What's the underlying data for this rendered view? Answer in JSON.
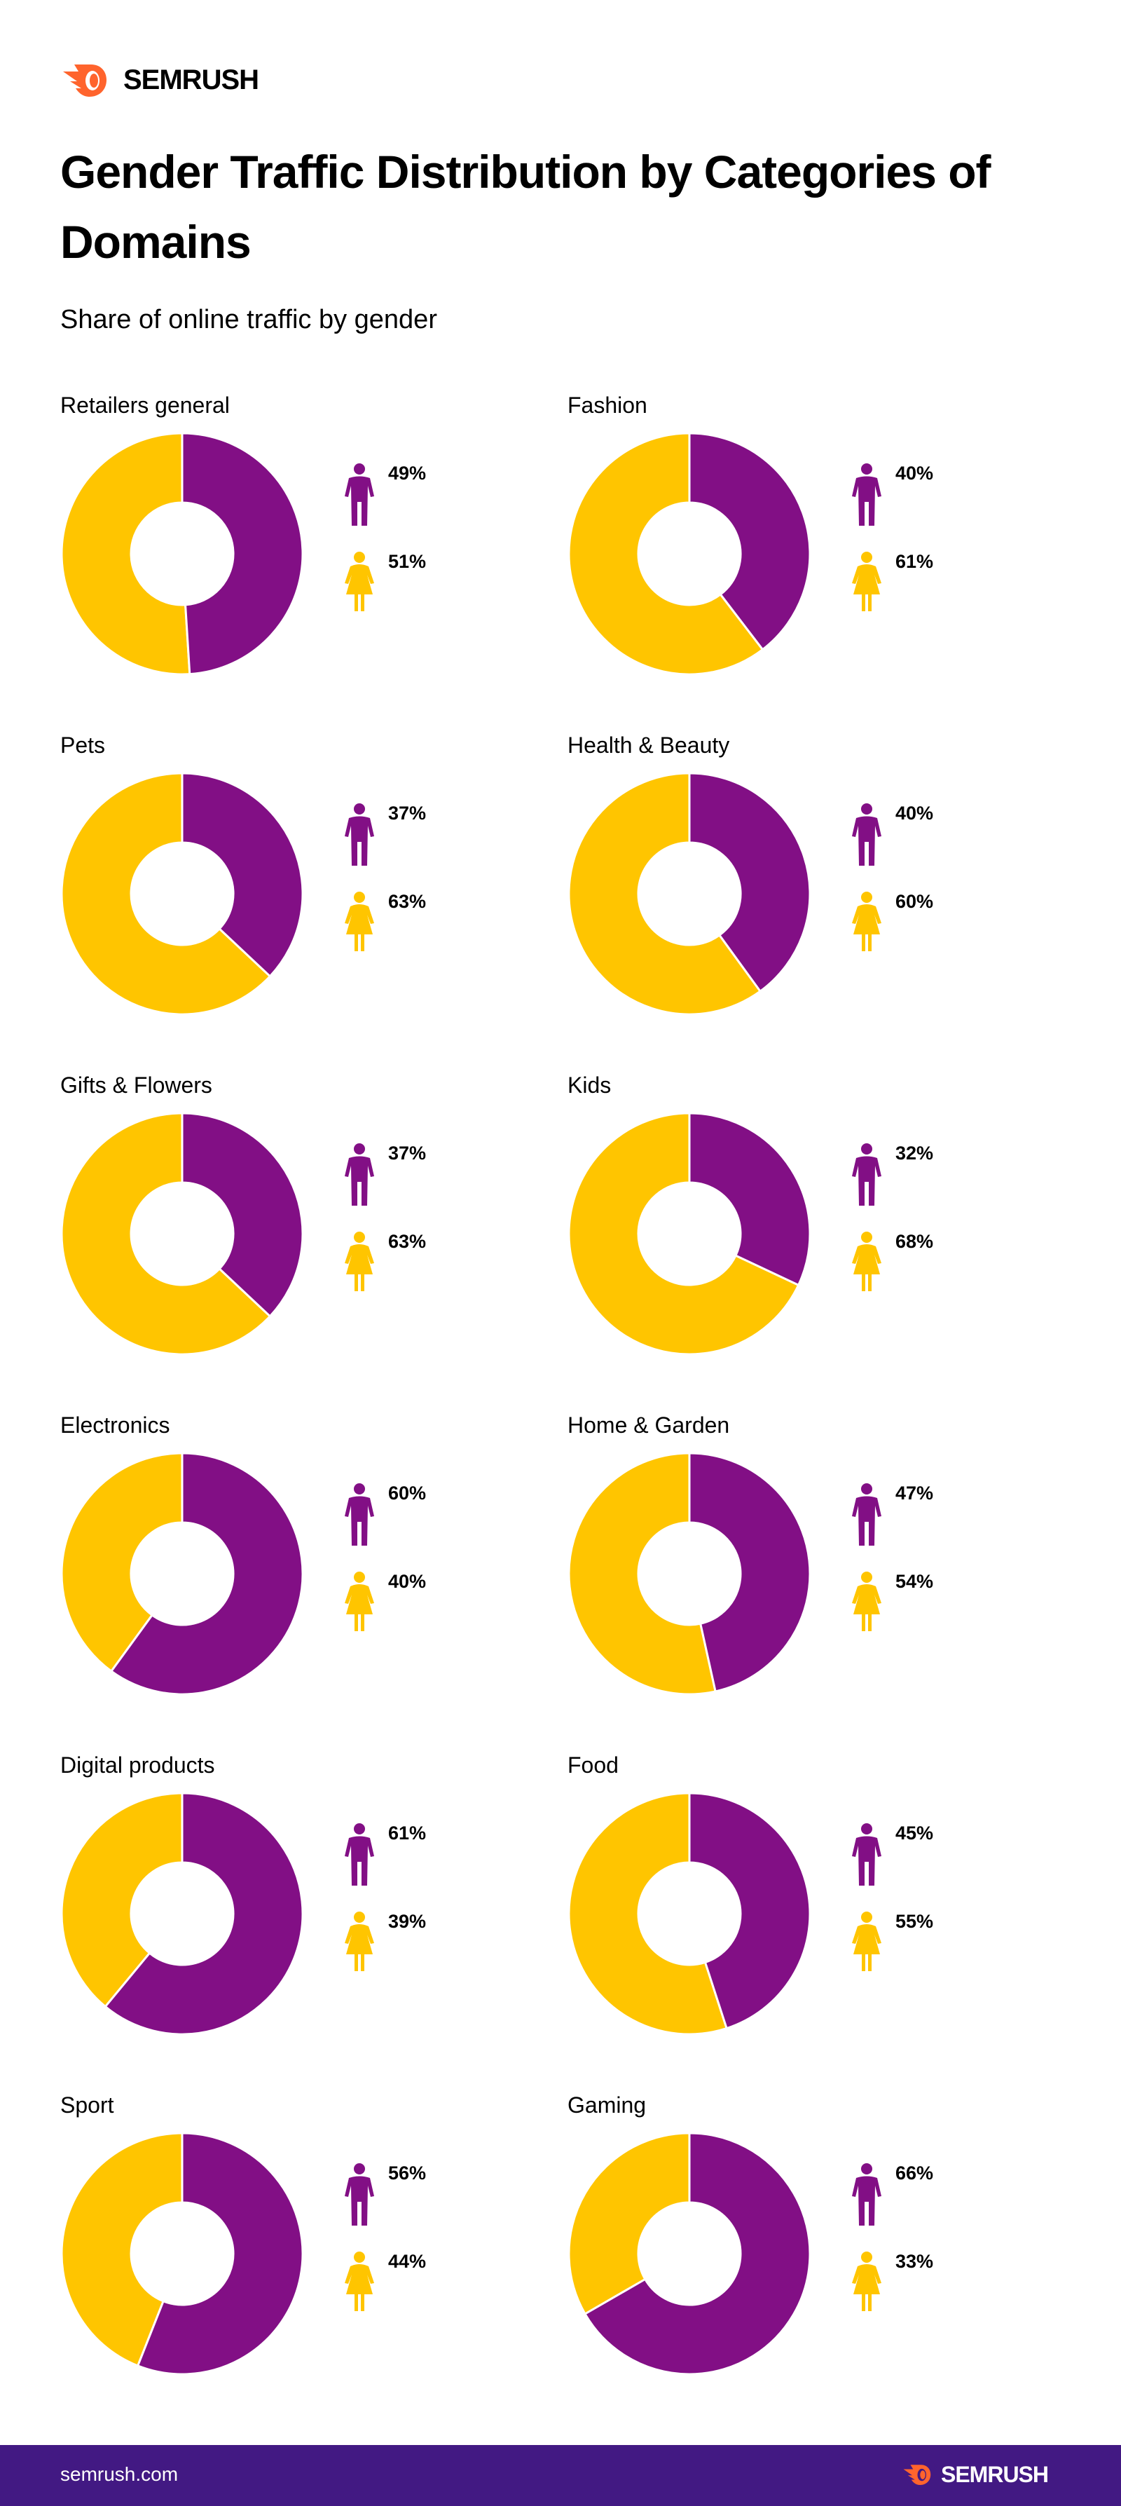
{
  "brand": {
    "name": "SEMRUSH",
    "orange": "#FF642D",
    "footer_bg": "#421983"
  },
  "colors": {
    "male": "#820F85",
    "female": "#FFC500"
  },
  "footer": {
    "url": "semrush.com",
    "logo": "SEMRUSH"
  },
  "chart_data": {
    "type": "pie",
    "title": "Gender Traffic Distribution by Categories of Domains",
    "subtitle": "Share of online traffic by gender",
    "series_icons": [
      "male-icon",
      "female-icon"
    ],
    "charts": [
      {
        "category": "Retailers general",
        "male": "49%",
        "female": "51%",
        "male_value": 49,
        "female_value": 51
      },
      {
        "category": "Fashion",
        "male": "40%",
        "female": "61%",
        "male_value": 40,
        "female_value": 61
      },
      {
        "category": "Pets",
        "male": "37%",
        "female": "63%",
        "male_value": 37,
        "female_value": 63
      },
      {
        "category": "Health & Beauty",
        "male": "40%",
        "female": "60%",
        "male_value": 40,
        "female_value": 60
      },
      {
        "category": "Gifts & Flowers",
        "male": "37%",
        "female": "63%",
        "male_value": 37,
        "female_value": 63
      },
      {
        "category": "Kids",
        "male": "32%",
        "female": "68%",
        "male_value": 32,
        "female_value": 68
      },
      {
        "category": "Electronics",
        "male": "60%",
        "female": "40%",
        "male_value": 60,
        "female_value": 40
      },
      {
        "category": "Home & Garden",
        "male": "47%",
        "female": "54%",
        "male_value": 47,
        "female_value": 54
      },
      {
        "category": "Digital products",
        "male": "61%",
        "female": "39%",
        "male_value": 61,
        "female_value": 39
      },
      {
        "category": "Food",
        "male": "45%",
        "female": "55%",
        "male_value": 45,
        "female_value": 55
      },
      {
        "category": "Sport",
        "male": "56%",
        "female": "44%",
        "male_value": 56,
        "female_value": 44
      },
      {
        "category": "Gaming",
        "male": "66%",
        "female": "33%",
        "male_value": 66,
        "female_value": 33
      }
    ]
  }
}
